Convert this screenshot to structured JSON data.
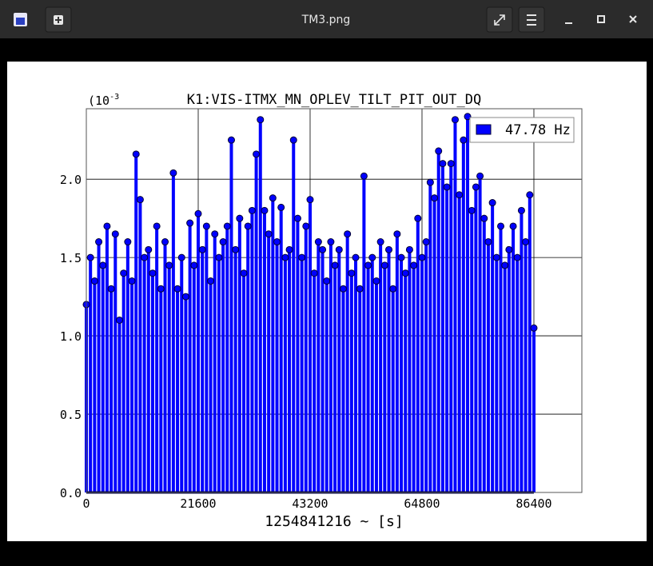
{
  "window": {
    "title": "TM3.png"
  },
  "chart_data": {
    "type": "stem",
    "title": "K1:VIS-ITMX_MN_OPLEV_TILT_PIT_OUT_DQ",
    "xlabel": "1254841216 ~ [s]",
    "y_offset": {
      "base": "(10",
      "exponent": "-3"
    },
    "legend": "upper right",
    "grid": true,
    "xlim": [
      0,
      95660
    ],
    "xticks": [
      0,
      21600,
      43200,
      64800,
      86400
    ],
    "ylim": [
      0,
      2.45
    ],
    "yticks": [
      {
        "value": 0,
        "label": "0.0"
      },
      0.5,
      {
        "value": 1,
        "label": "1.0"
      },
      1.5,
      {
        "value": 2,
        "label": "2.0"
      }
    ],
    "x": [
      0,
      800,
      1600,
      2400,
      3200,
      4000,
      4800,
      5600,
      6400,
      7200,
      8000,
      8800,
      9600,
      10400,
      11200,
      12000,
      12800,
      13600,
      14400,
      15200,
      16000,
      16800,
      17600,
      18400,
      19200,
      20000,
      20800,
      21600,
      22400,
      23200,
      24000,
      24800,
      25600,
      26400,
      27200,
      28000,
      28800,
      29600,
      30400,
      31200,
      32000,
      32800,
      33600,
      34400,
      35200,
      36000,
      36800,
      37600,
      38400,
      39200,
      40000,
      40800,
      41600,
      42400,
      43200,
      44000,
      44800,
      45600,
      46400,
      47200,
      48000,
      48800,
      49600,
      50400,
      51200,
      52000,
      52800,
      53600,
      54400,
      55200,
      56000,
      56800,
      57600,
      58400,
      59200,
      60000,
      60800,
      61600,
      62400,
      63200,
      64000,
      64800,
      65600,
      66400,
      67200,
      68000,
      68800,
      69600,
      70400,
      71200,
      72000,
      72800,
      73600,
      74400,
      75200,
      76000,
      76800,
      77600,
      78400,
      79200,
      80000,
      80800,
      81600,
      82400,
      83200,
      84000,
      84800,
      85600,
      86400
    ],
    "series": [
      {
        "name": "47.78 Hz",
        "color": "#0000ff",
        "values": [
          1.2,
          1.5,
          1.35,
          1.6,
          1.45,
          1.7,
          1.3,
          1.65,
          1.1,
          1.4,
          1.6,
          1.35,
          2.16,
          1.87,
          1.5,
          1.55,
          1.4,
          1.7,
          1.3,
          1.6,
          1.45,
          2.04,
          1.3,
          1.5,
          1.25,
          1.72,
          1.45,
          1.78,
          1.55,
          1.7,
          1.35,
          1.65,
          1.5,
          1.6,
          1.7,
          2.25,
          1.55,
          1.75,
          1.4,
          1.7,
          1.8,
          2.16,
          2.38,
          1.8,
          1.65,
          1.88,
          1.6,
          1.82,
          1.5,
          1.55,
          2.25,
          1.75,
          1.5,
          1.7,
          1.87,
          1.4,
          1.6,
          1.55,
          1.35,
          1.6,
          1.45,
          1.55,
          1.3,
          1.65,
          1.4,
          1.5,
          1.3,
          2.02,
          1.45,
          1.5,
          1.35,
          1.6,
          1.45,
          1.55,
          1.3,
          1.65,
          1.5,
          1.4,
          1.55,
          1.45,
          1.75,
          1.5,
          1.6,
          1.98,
          1.88,
          2.18,
          2.1,
          1.95,
          2.1,
          2.38,
          1.9,
          2.25,
          2.4,
          1.8,
          1.95,
          2.02,
          1.75,
          1.6,
          1.85,
          1.5,
          1.7,
          1.45,
          1.55,
          1.7,
          1.5,
          1.8,
          1.6,
          1.9,
          1.05
        ]
      }
    ]
  }
}
